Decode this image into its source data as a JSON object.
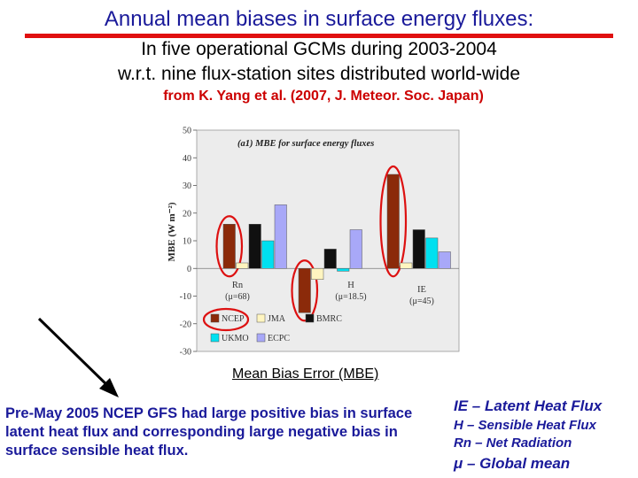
{
  "slide": {
    "title": "Annual mean biases in surface energy fluxes:",
    "subtitle_line1": "In five operational GCMs during 2003-2004",
    "subtitle_line2": "w.r.t. nine flux-station sites distributed world-wide",
    "source": "from K. Yang et al. (2007, J. Meteor. Soc. Japan)",
    "caption": "Mean Bias Error (MBE)",
    "note": "Pre-May 2005 NCEP GFS had large positive bias in surface latent heat flux and corresponding large negative bias in surface sensible heat flux.",
    "legend_ie": "IE – Latent Heat Flux",
    "legend_h": "H – Sensible Heat Flux",
    "legend_rn": "Rn – Net Radiation",
    "legend_mu": "μ – Global mean",
    "colors": {
      "title": "#1a1a9a",
      "source": "#cc0000",
      "rule": "#e01010",
      "highlight": "#dd1111"
    }
  },
  "chart_data": {
    "type": "bar",
    "title": "(a1) MBE for surface energy fluxes",
    "ylabel": "MBE (W m⁻²)",
    "ylim": [
      -30,
      50
    ],
    "yticks": [
      -30,
      -20,
      -10,
      0,
      10,
      20,
      30,
      40,
      50
    ],
    "groups": [
      {
        "label": "Rn",
        "mu": "(μ=68)"
      },
      {
        "label": "H",
        "mu": "(μ=18.5)"
      },
      {
        "label": "IE",
        "mu": "(μ=45)"
      }
    ],
    "series": [
      {
        "name": "NCEP",
        "color": "#8b2a0a",
        "values": [
          16,
          -16,
          34
        ]
      },
      {
        "name": "JMA",
        "color": "#fff5c0",
        "values": [
          2,
          -4,
          2
        ]
      },
      {
        "name": "BMRC",
        "color": "#101010",
        "values": [
          16,
          7,
          14
        ]
      },
      {
        "name": "UKMO",
        "color": "#00e0f0",
        "values": [
          10,
          -1,
          11
        ]
      },
      {
        "name": "ECPC",
        "color": "#a8a8f8",
        "values": [
          23,
          14,
          6
        ]
      }
    ],
    "highlighted": [
      "NCEP"
    ],
    "legend_placement": "bottom-left"
  }
}
